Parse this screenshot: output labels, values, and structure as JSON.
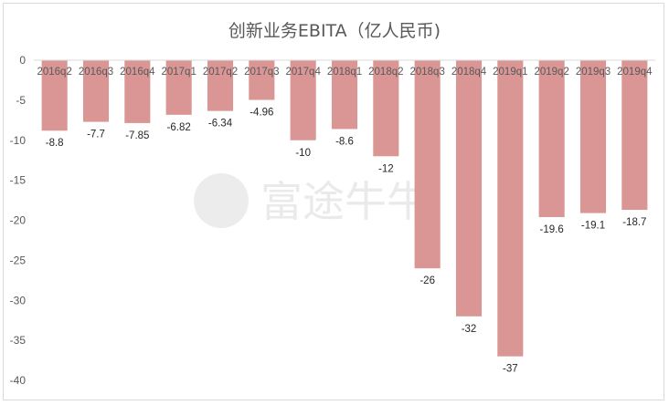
{
  "chart_data": {
    "type": "bar",
    "title": "创新业务EBITA（亿人民币)",
    "xlabel": "",
    "ylabel": "",
    "categories": [
      "2016q2",
      "2016q3",
      "2016q4",
      "2017q1",
      "2017q2",
      "2017q3",
      "2017q4",
      "2018q1",
      "2018q2",
      "2018q3",
      "2018q4",
      "2019q1",
      "2019q2",
      "2019q3",
      "2019q4"
    ],
    "values": [
      -8.8,
      -7.7,
      -7.85,
      -6.82,
      -6.34,
      -4.96,
      -10,
      -8.6,
      -12,
      -26,
      -32,
      -37,
      -19.6,
      -19.1,
      -18.7
    ],
    "data_labels": [
      "-8.8",
      "-7.7",
      "-7.85",
      "-6.82",
      "-6.34",
      "-4.96",
      "-10",
      "-8.6",
      "-12",
      "-26",
      "-32",
      "-37",
      "-19.6",
      "-19.1",
      "-18.7"
    ],
    "ylim": [
      -40,
      0
    ],
    "yticks": [
      0,
      -5,
      -10,
      -15,
      -20,
      -25,
      -30,
      -35,
      -40
    ],
    "grid": false,
    "legend": "none",
    "bar_color": "#d99694"
  },
  "watermark": "富途牛牛"
}
